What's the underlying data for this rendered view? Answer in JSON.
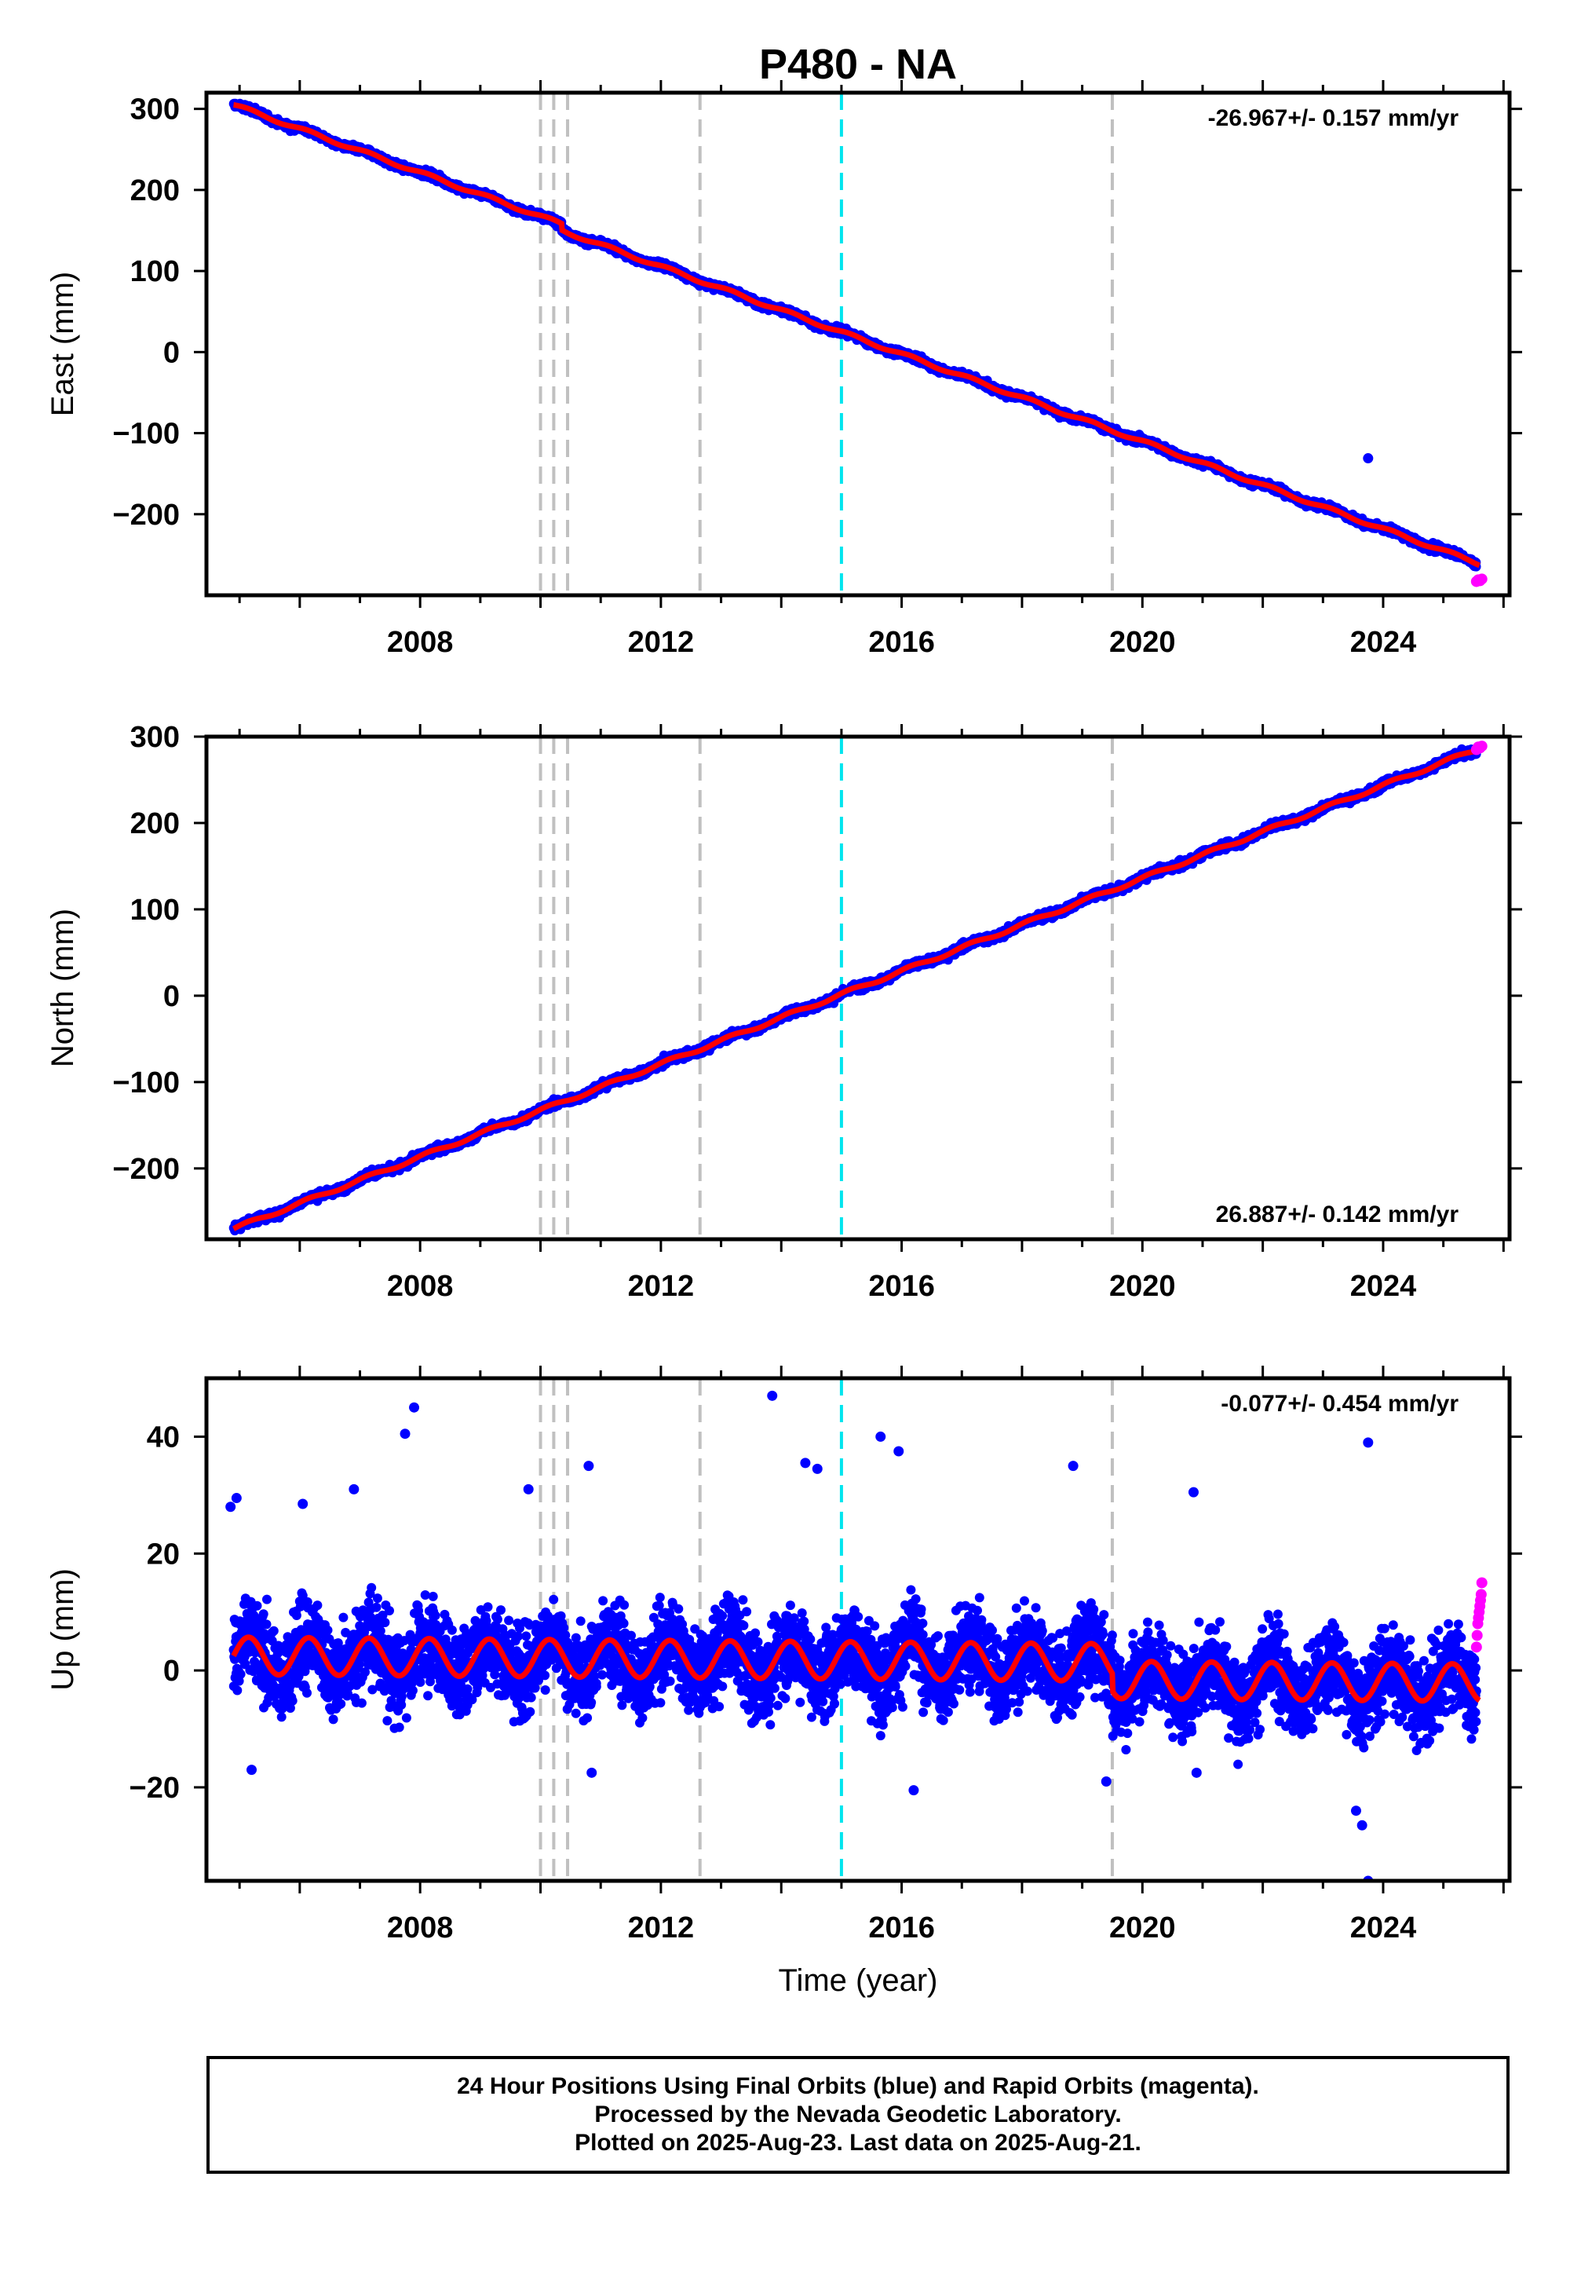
{
  "chart_data": [
    {
      "type": "scatter",
      "title": "P480 - NA",
      "ylabel": "East (mm)",
      "xlabel": "",
      "xlim": [
        2004.45,
        2026.1
      ],
      "ylim": [
        -300,
        320
      ],
      "x_ticks": [
        2008,
        2012,
        2016,
        2020,
        2024
      ],
      "y_ticks": [
        -200,
        -100,
        0,
        100,
        200,
        300
      ],
      "rate_text": "-26.967+/- 0.157 mm/yr",
      "rate_position": "top-right",
      "trend": {
        "start_year": 2004.9,
        "end_year": 2025.6,
        "start_value": 305,
        "slope": -26.967,
        "annual_amplitude": 2,
        "steps": [
          {
            "year": 2010.35,
            "value": -8
          }
        ]
      },
      "series": [
        {
          "name": "Final Orbits (blue)",
          "color": "#0000ff",
          "x_range": [
            2004.9,
            2025.55
          ],
          "scatter_mm": 3
        },
        {
          "name": "Rapid Orbits (magenta)",
          "color": "#ff00ff",
          "x_range": [
            2025.55,
            2025.64
          ],
          "values": [
            -283,
            -281,
            -282,
            -280
          ]
        }
      ],
      "outliers": [
        {
          "x": 2023.75,
          "y": -131
        }
      ],
      "event_lines": [
        2010.0,
        2010.22,
        2010.45,
        2012.65,
        2019.5
      ],
      "reference_line": 2015.0
    },
    {
      "type": "scatter",
      "title": "",
      "ylabel": "North (mm)",
      "xlabel": "",
      "xlim": [
        2004.45,
        2026.1
      ],
      "ylim": [
        -282,
        300
      ],
      "x_ticks": [
        2008,
        2012,
        2016,
        2020,
        2024
      ],
      "y_ticks": [
        -200,
        -100,
        0,
        100,
        200,
        300
      ],
      "rate_text": "26.887+/- 0.142 mm/yr",
      "rate_position": "bottom-right",
      "trend": {
        "start_year": 2004.9,
        "end_year": 2025.6,
        "start_value": -270,
        "slope": 26.887,
        "annual_amplitude": 2,
        "steps": []
      },
      "series": [
        {
          "name": "Final Orbits (blue)",
          "color": "#0000ff",
          "x_range": [
            2004.9,
            2025.55
          ],
          "scatter_mm": 3
        },
        {
          "name": "Rapid Orbits (magenta)",
          "color": "#ff00ff",
          "x_range": [
            2025.55,
            2025.64
          ],
          "values": [
            285,
            288,
            287,
            289
          ]
        }
      ],
      "outliers": [],
      "event_lines": [
        2010.0,
        2010.22,
        2010.45,
        2012.65,
        2019.5
      ],
      "reference_line": 2015.0
    },
    {
      "type": "scatter",
      "title": "",
      "ylabel": "Up (mm)",
      "xlabel": "Time (year)",
      "xlim": [
        2004.45,
        2026.1
      ],
      "ylim": [
        -36,
        50
      ],
      "x_ticks": [
        2008,
        2012,
        2016,
        2020,
        2024
      ],
      "y_ticks": [
        -20,
        0,
        20,
        40
      ],
      "rate_text": "-0.077+/- 0.454 mm/yr",
      "rate_position": "top-right",
      "trend": {
        "start_year": 2004.9,
        "end_year": 2025.6,
        "start_value": 2.5,
        "slope": -0.077,
        "annual_amplitude": 3.2,
        "steps": [
          {
            "year": 2019.5,
            "value": -3
          }
        ]
      },
      "series": [
        {
          "name": "Final Orbits (blue)",
          "color": "#0000ff",
          "x_range": [
            2004.9,
            2025.55
          ],
          "scatter_mm": 5
        },
        {
          "name": "Rapid Orbits (magenta)",
          "color": "#ff00ff",
          "x_range": [
            2025.55,
            2025.64
          ],
          "values": [
            4,
            6,
            8,
            9,
            10,
            11,
            12,
            13,
            15
          ]
        }
      ],
      "outliers": [
        {
          "x": 2013.85,
          "y": 47
        },
        {
          "x": 2007.9,
          "y": 45
        },
        {
          "x": 2007.75,
          "y": 40.5
        },
        {
          "x": 2023.75,
          "y": 39
        },
        {
          "x": 2015.65,
          "y": 40
        },
        {
          "x": 2015.95,
          "y": 37.5
        },
        {
          "x": 2010.8,
          "y": 35
        },
        {
          "x": 2014.4,
          "y": 35.5
        },
        {
          "x": 2014.6,
          "y": 34.5
        },
        {
          "x": 2018.85,
          "y": 35
        },
        {
          "x": 2009.8,
          "y": 31
        },
        {
          "x": 2006.9,
          "y": 31
        },
        {
          "x": 2020.85,
          "y": 30.5
        },
        {
          "x": 2004.95,
          "y": 29.5
        },
        {
          "x": 2004.85,
          "y": 28
        },
        {
          "x": 2006.05,
          "y": 28.5
        },
        {
          "x": 2023.75,
          "y": -36
        },
        {
          "x": 2023.65,
          "y": -26.5
        },
        {
          "x": 2023.55,
          "y": -24
        },
        {
          "x": 2016.2,
          "y": -20.5
        },
        {
          "x": 2010.85,
          "y": -17.5
        },
        {
          "x": 2005.2,
          "y": -17
        },
        {
          "x": 2019.4,
          "y": -19
        },
        {
          "x": 2020.9,
          "y": -17.5
        }
      ],
      "event_lines": [
        2010.0,
        2010.22,
        2010.45,
        2012.65,
        2019.5
      ],
      "reference_line": 2015.0
    }
  ],
  "colors": {
    "final_orbits": "#0000ff",
    "rapid_orbits": "#ff00ff",
    "model_fit": "#ff0000",
    "event_line": "#c0c0c0",
    "reference_line": "#00e5ee"
  },
  "footer": {
    "line1": "24 Hour Positions Using Final Orbits (blue) and Rapid Orbits (magenta).",
    "line2": "Processed by the Nevada Geodetic Laboratory.",
    "line3": "Plotted on 2025-Aug-23. Last data on 2025-Aug-21."
  }
}
